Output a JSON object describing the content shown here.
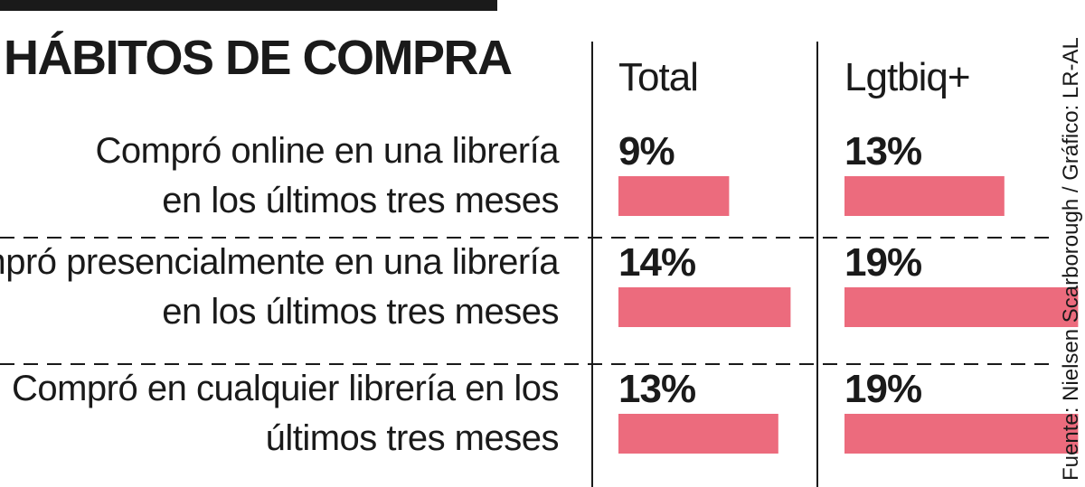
{
  "title": "HÁBITOS DE COMPRA",
  "source": "Fuente: Nielsen Scarborough / Gráfico: LR-AL",
  "bar_color": "#ec6b7d",
  "chart_data": {
    "type": "bar",
    "title": "HÁBITOS DE COMPRA",
    "categories": [
      [
        "Compró online en una librería",
        "en los últimos tres meses"
      ],
      [
        "Compró presencialmente en una librería",
        "en los últimos tres meses"
      ],
      [
        "Compró en cualquier librería en los",
        "últimos tres meses"
      ]
    ],
    "series": [
      {
        "name": "Total",
        "values": [
          9,
          14,
          13
        ],
        "labels": [
          "9%",
          "14%",
          "13%"
        ]
      },
      {
        "name": "Lgtbiq+",
        "values": [
          13,
          19,
          19
        ],
        "labels": [
          "13%",
          "19%",
          "19%"
        ]
      }
    ],
    "unit": "%"
  }
}
